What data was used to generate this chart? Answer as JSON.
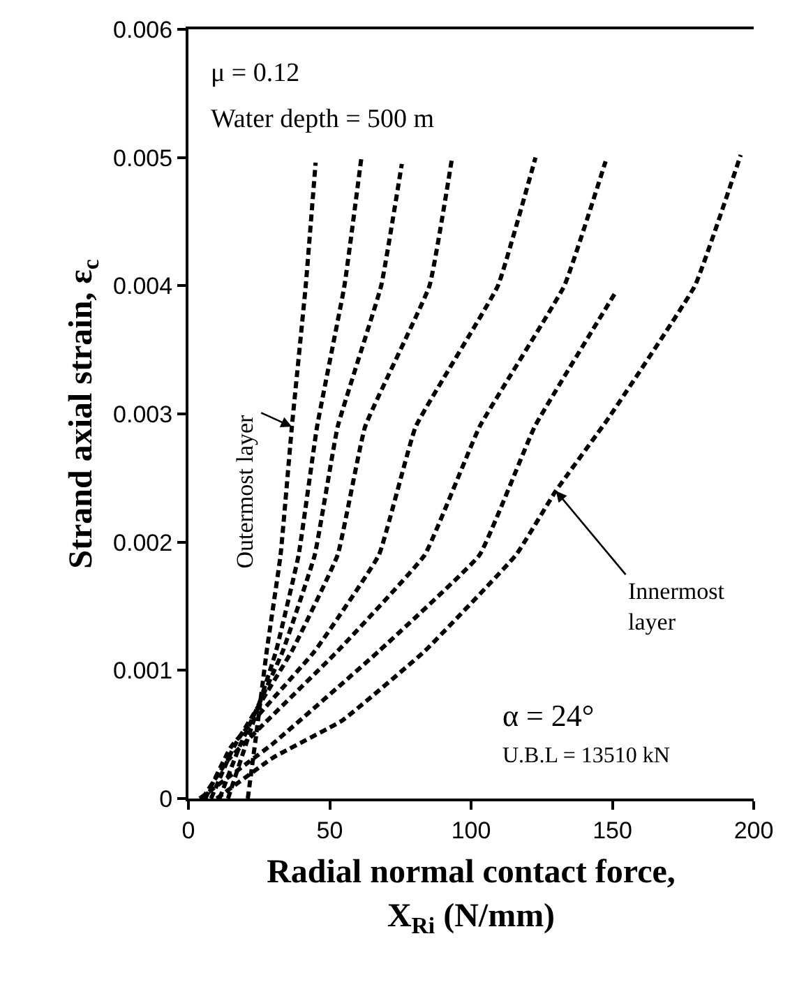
{
  "chart_data": {
    "type": "line",
    "xlabel": "Radial normal contact force,\nX$_{Ri}$ (N/mm)",
    "ylabel": "Strand axial strain, ε$_{c}$",
    "xlim": [
      0,
      200
    ],
    "xticks": [
      0,
      50,
      100,
      150,
      200
    ],
    "ylim": [
      0,
      0.006
    ],
    "yticks": [
      0,
      0.001,
      0.002,
      0.003,
      0.004,
      0.005,
      0.006
    ],
    "grid": false,
    "marker": "none",
    "line_style": "dashed",
    "series": [
      {
        "color": "#000000",
        "x": [
          21,
          24,
          27.7,
          32.6,
          36.6,
          41.5,
          45
        ],
        "values": [
          0,
          0.0005,
          0.00115,
          0.0019,
          0.0029,
          0.004,
          0.00496
        ]
      },
      {
        "color": "#000000",
        "x": [
          14,
          20,
          31,
          39,
          45.5,
          55.2,
          61.2
        ],
        "values": [
          0,
          0.0004,
          0.00115,
          0.0019,
          0.0029,
          0.004,
          0.005
        ]
      },
      {
        "color": "#000000",
        "x": [
          11,
          18,
          33.4,
          44.7,
          52.8,
          68.2,
          75.5
        ],
        "values": [
          0,
          0.0004,
          0.00115,
          0.0019,
          0.0029,
          0.004,
          0.00495
        ]
      },
      {
        "color": "#000000",
        "x": [
          8,
          16,
          36.6,
          52.8,
          62.5,
          85.3,
          93.3
        ],
        "values": [
          0,
          0.0004,
          0.00115,
          0.0019,
          0.0029,
          0.004,
          0.005
        ]
      },
      {
        "color": "#000000",
        "x": [
          6,
          15,
          44.7,
          67.4,
          80.4,
          109.5,
          122.8
        ],
        "values": [
          0,
          0.0004,
          0.00115,
          0.0019,
          0.0029,
          0.004,
          0.005
        ]
      },
      {
        "color": "#000000",
        "x": [
          5,
          14,
          52.8,
          83.6,
          103,
          133,
          147.6
        ],
        "values": [
          0,
          0.0003,
          0.00115,
          0.0019,
          0.0029,
          0.004,
          0.00497
        ]
      },
      {
        "color": "#000000",
        "x": [
          4,
          30,
          67.4,
          103,
          122.5,
          150.9
        ],
        "values": [
          0,
          0.00043,
          0.00115,
          0.0019,
          0.0029,
          0.00394
        ]
      },
      {
        "color": "#000000",
        "x": [
          10,
          30,
          54.5,
          83.6,
          115.9,
          130,
          148.4,
          179.2,
          195.4
        ],
        "values": [
          0,
          0.00032,
          0.00061,
          0.00115,
          0.0019,
          0.0024,
          0.00296,
          0.004,
          0.00502
        ]
      }
    ],
    "annotations": [
      "μ = 0.12",
      "Water depth = 500 m",
      {
        "text": "Outermost layer",
        "x": 36.6,
        "y": 0.0029
      },
      {
        "text": "Innermost\nlayer",
        "x": 130,
        "y": 0.0024
      },
      "α = 24°",
      "U.B.L = 13510 kN"
    ]
  }
}
